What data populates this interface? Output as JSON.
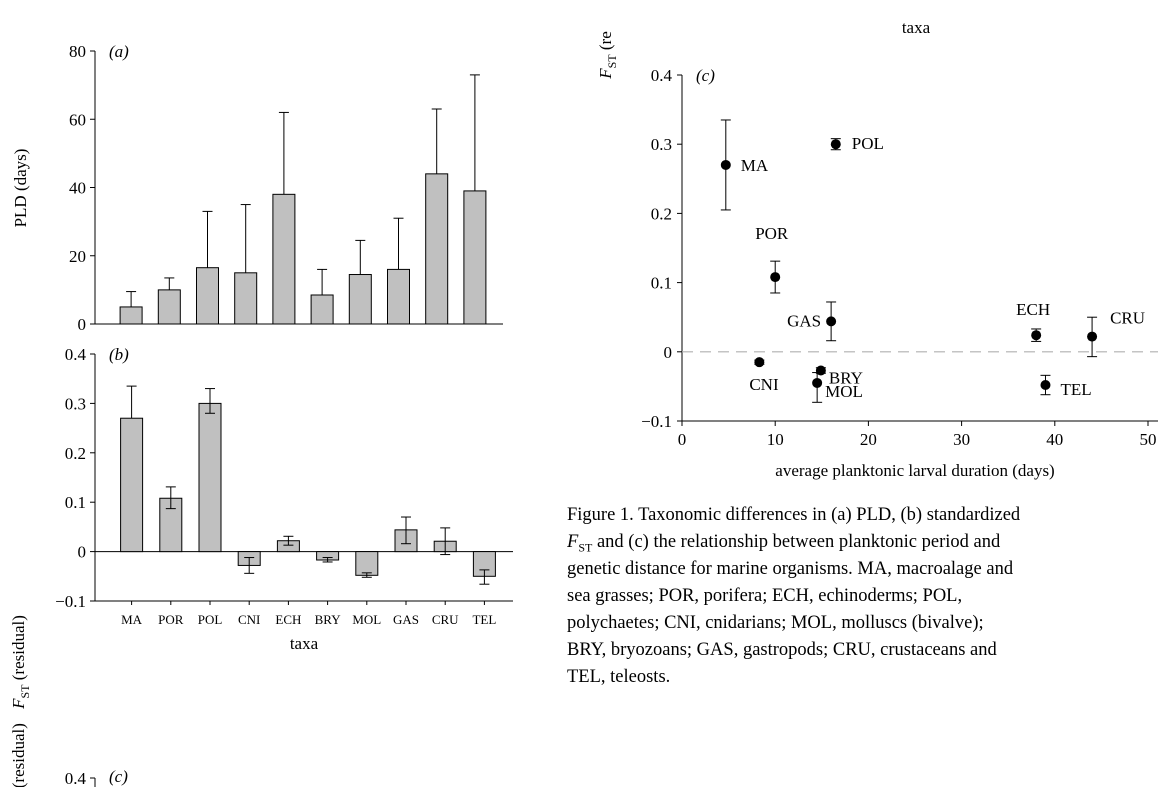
{
  "chart_data": [
    {
      "id": "a",
      "type": "bar",
      "panel_label": "(a)",
      "ylabel": "PLD (days)",
      "xlabel": "",
      "ylim": [
        0,
        80
      ],
      "yticks": [
        0,
        20,
        40,
        60,
        80
      ],
      "categories": [
        "MA",
        "POR",
        "POL",
        "CNI",
        "ECH",
        "BRY",
        "MOL",
        "GAS",
        "CRU",
        "TEL"
      ],
      "values": [
        5,
        10,
        16.5,
        15,
        38,
        8.5,
        14.5,
        16,
        44,
        39
      ],
      "error_upper": [
        9.5,
        13.5,
        33,
        35,
        62,
        16,
        24.5,
        31,
        63,
        73
      ],
      "error_lower": [
        5,
        10,
        16.5,
        15,
        38,
        8.5,
        14.5,
        16,
        44,
        39
      ],
      "colors": {
        "bar": "#c0c0c0",
        "stroke": "#000000"
      }
    },
    {
      "id": "b",
      "type": "bar",
      "panel_label": "(b)",
      "ylabel": "F_ST (residual)",
      "xlabel": "taxa",
      "ylim": [
        -0.1,
        0.4
      ],
      "yticks": [
        -0.1,
        0,
        0.1,
        0.2,
        0.3,
        0.4
      ],
      "categories": [
        "MA",
        "POR",
        "POL",
        "CNI",
        "ECH",
        "BRY",
        "MOL",
        "GAS",
        "CRU",
        "TEL"
      ],
      "values": [
        0.27,
        0.108,
        0.3,
        -0.028,
        0.022,
        -0.017,
        -0.048,
        0.044,
        0.021,
        -0.05
      ],
      "error_upper": [
        0.335,
        0.131,
        0.33,
        -0.012,
        0.031,
        -0.012,
        -0.043,
        0.07,
        0.048,
        -0.037
      ],
      "error_lower": [
        0.27,
        0.087,
        0.28,
        -0.044,
        0.013,
        -0.021,
        -0.052,
        0.016,
        -0.006,
        -0.066
      ],
      "colors": {
        "bar": "#c0c0c0",
        "stroke": "#000000"
      }
    },
    {
      "id": "c",
      "type": "scatter",
      "panel_label": "(c)",
      "ylabel": "F_ST (re",
      "xlabel": "average planktonic larval duration (days)",
      "top_label": "taxa",
      "xlim": [
        0,
        50
      ],
      "ylim": [
        -0.1,
        0.4
      ],
      "xticks": [
        0,
        10,
        20,
        30,
        40,
        50
      ],
      "yticks": [
        -0.1,
        0,
        0.1,
        0.2,
        0.3,
        0.4
      ],
      "reference_line": {
        "y": 0,
        "style": "dashed",
        "color": "#b0b0b0"
      },
      "points": [
        {
          "label": "MA",
          "x": 4.7,
          "y": 0.27,
          "err_low": 0.205,
          "err_high": 0.335
        },
        {
          "label": "POL",
          "x": 16.5,
          "y": 0.3,
          "err_low": 0.292,
          "err_high": 0.308
        },
        {
          "label": "POR",
          "x": 10.0,
          "y": 0.108,
          "err_low": 0.085,
          "err_high": 0.131
        },
        {
          "label": "GAS",
          "x": 16.0,
          "y": 0.044,
          "err_low": 0.016,
          "err_high": 0.072
        },
        {
          "label": "ECH",
          "x": 38.0,
          "y": 0.024,
          "err_low": 0.015,
          "err_high": 0.033
        },
        {
          "label": "CRU",
          "x": 44.0,
          "y": 0.022,
          "err_low": -0.007,
          "err_high": 0.05
        },
        {
          "label": "CNI",
          "x": 8.3,
          "y": -0.015,
          "err_low": -0.018,
          "err_high": -0.012
        },
        {
          "label": "BRY",
          "x": 14.9,
          "y": -0.027,
          "err_low": -0.031,
          "err_high": -0.023
        },
        {
          "label": "MOL",
          "x": 14.5,
          "y": -0.045,
          "err_low": -0.073,
          "err_high": -0.03
        },
        {
          "label": "TEL",
          "x": 39.0,
          "y": -0.048,
          "err_low": -0.062,
          "err_high": -0.034
        }
      ]
    },
    {
      "id": "c-fragment",
      "type": "scatter",
      "panel_label": "(c)",
      "ylabel": "F_ST (residual)",
      "yticks": [
        0.4
      ]
    }
  ],
  "caption": {
    "lines": [
      "Figure 1. Taxonomic differences in (a) PLD, (b) standardized",
      "F_ST and (c) the relationship between planktonic period and",
      "genetic distance for marine organisms. MA, macroalage and",
      "sea grasses; POR, porifera; ECH, echinoderms; POL,",
      "polychaetes; CNI, cnidarians; MOL, molluscs (bivalve);",
      "BRY, bryozoans; GAS, gastropods; CRU, crustaceans and",
      "TEL, teleosts."
    ]
  }
}
